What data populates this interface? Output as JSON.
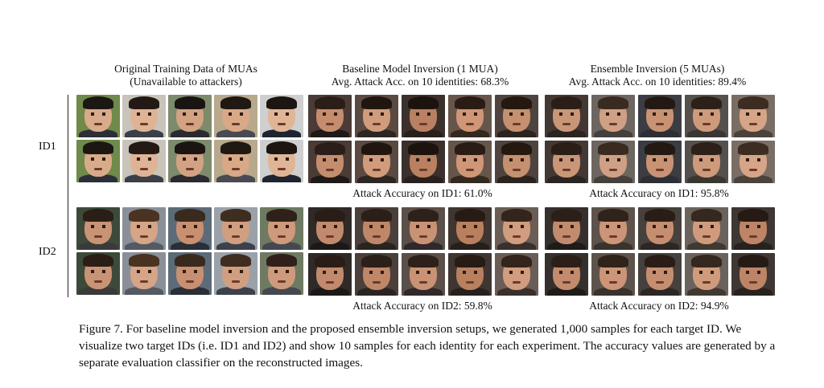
{
  "columns": {
    "original": {
      "title_line1": "Original Training Data of MUAs",
      "title_line2": "(Unavailable to attackers)"
    },
    "baseline": {
      "title_line1": "Baseline Model Inversion (1 MUA)",
      "title_line2": "Avg. Attack Acc. on 10 identities:  68.3%"
    },
    "ensemble": {
      "title_line1": "Ensemble Inversion (5 MUAs)",
      "title_line2": "Avg. Attack Acc. on 10 identities:  89.4%"
    }
  },
  "rows": {
    "id1": "ID1",
    "id2": "ID2"
  },
  "accuracy": {
    "baseline_id1": "Attack Accuracy on ID1: 61.0%",
    "ensemble_id1": "Attack Accuracy on ID1: 95.8%",
    "baseline_id2": "Attack Accuracy on ID2: 59.8%",
    "ensemble_id2": "Attack Accuracy on ID2: 94.9%"
  },
  "caption": "Figure 7. For baseline model inversion and the proposed ensemble inversion setups, we generated 1,000 samples for each target ID. We visualize two target IDs (i.e. ID1 and ID2) and show 10 samples for each identity for each experiment. The accuracy values are generated by a separate evaluation classifier on the reconstructed images."
}
